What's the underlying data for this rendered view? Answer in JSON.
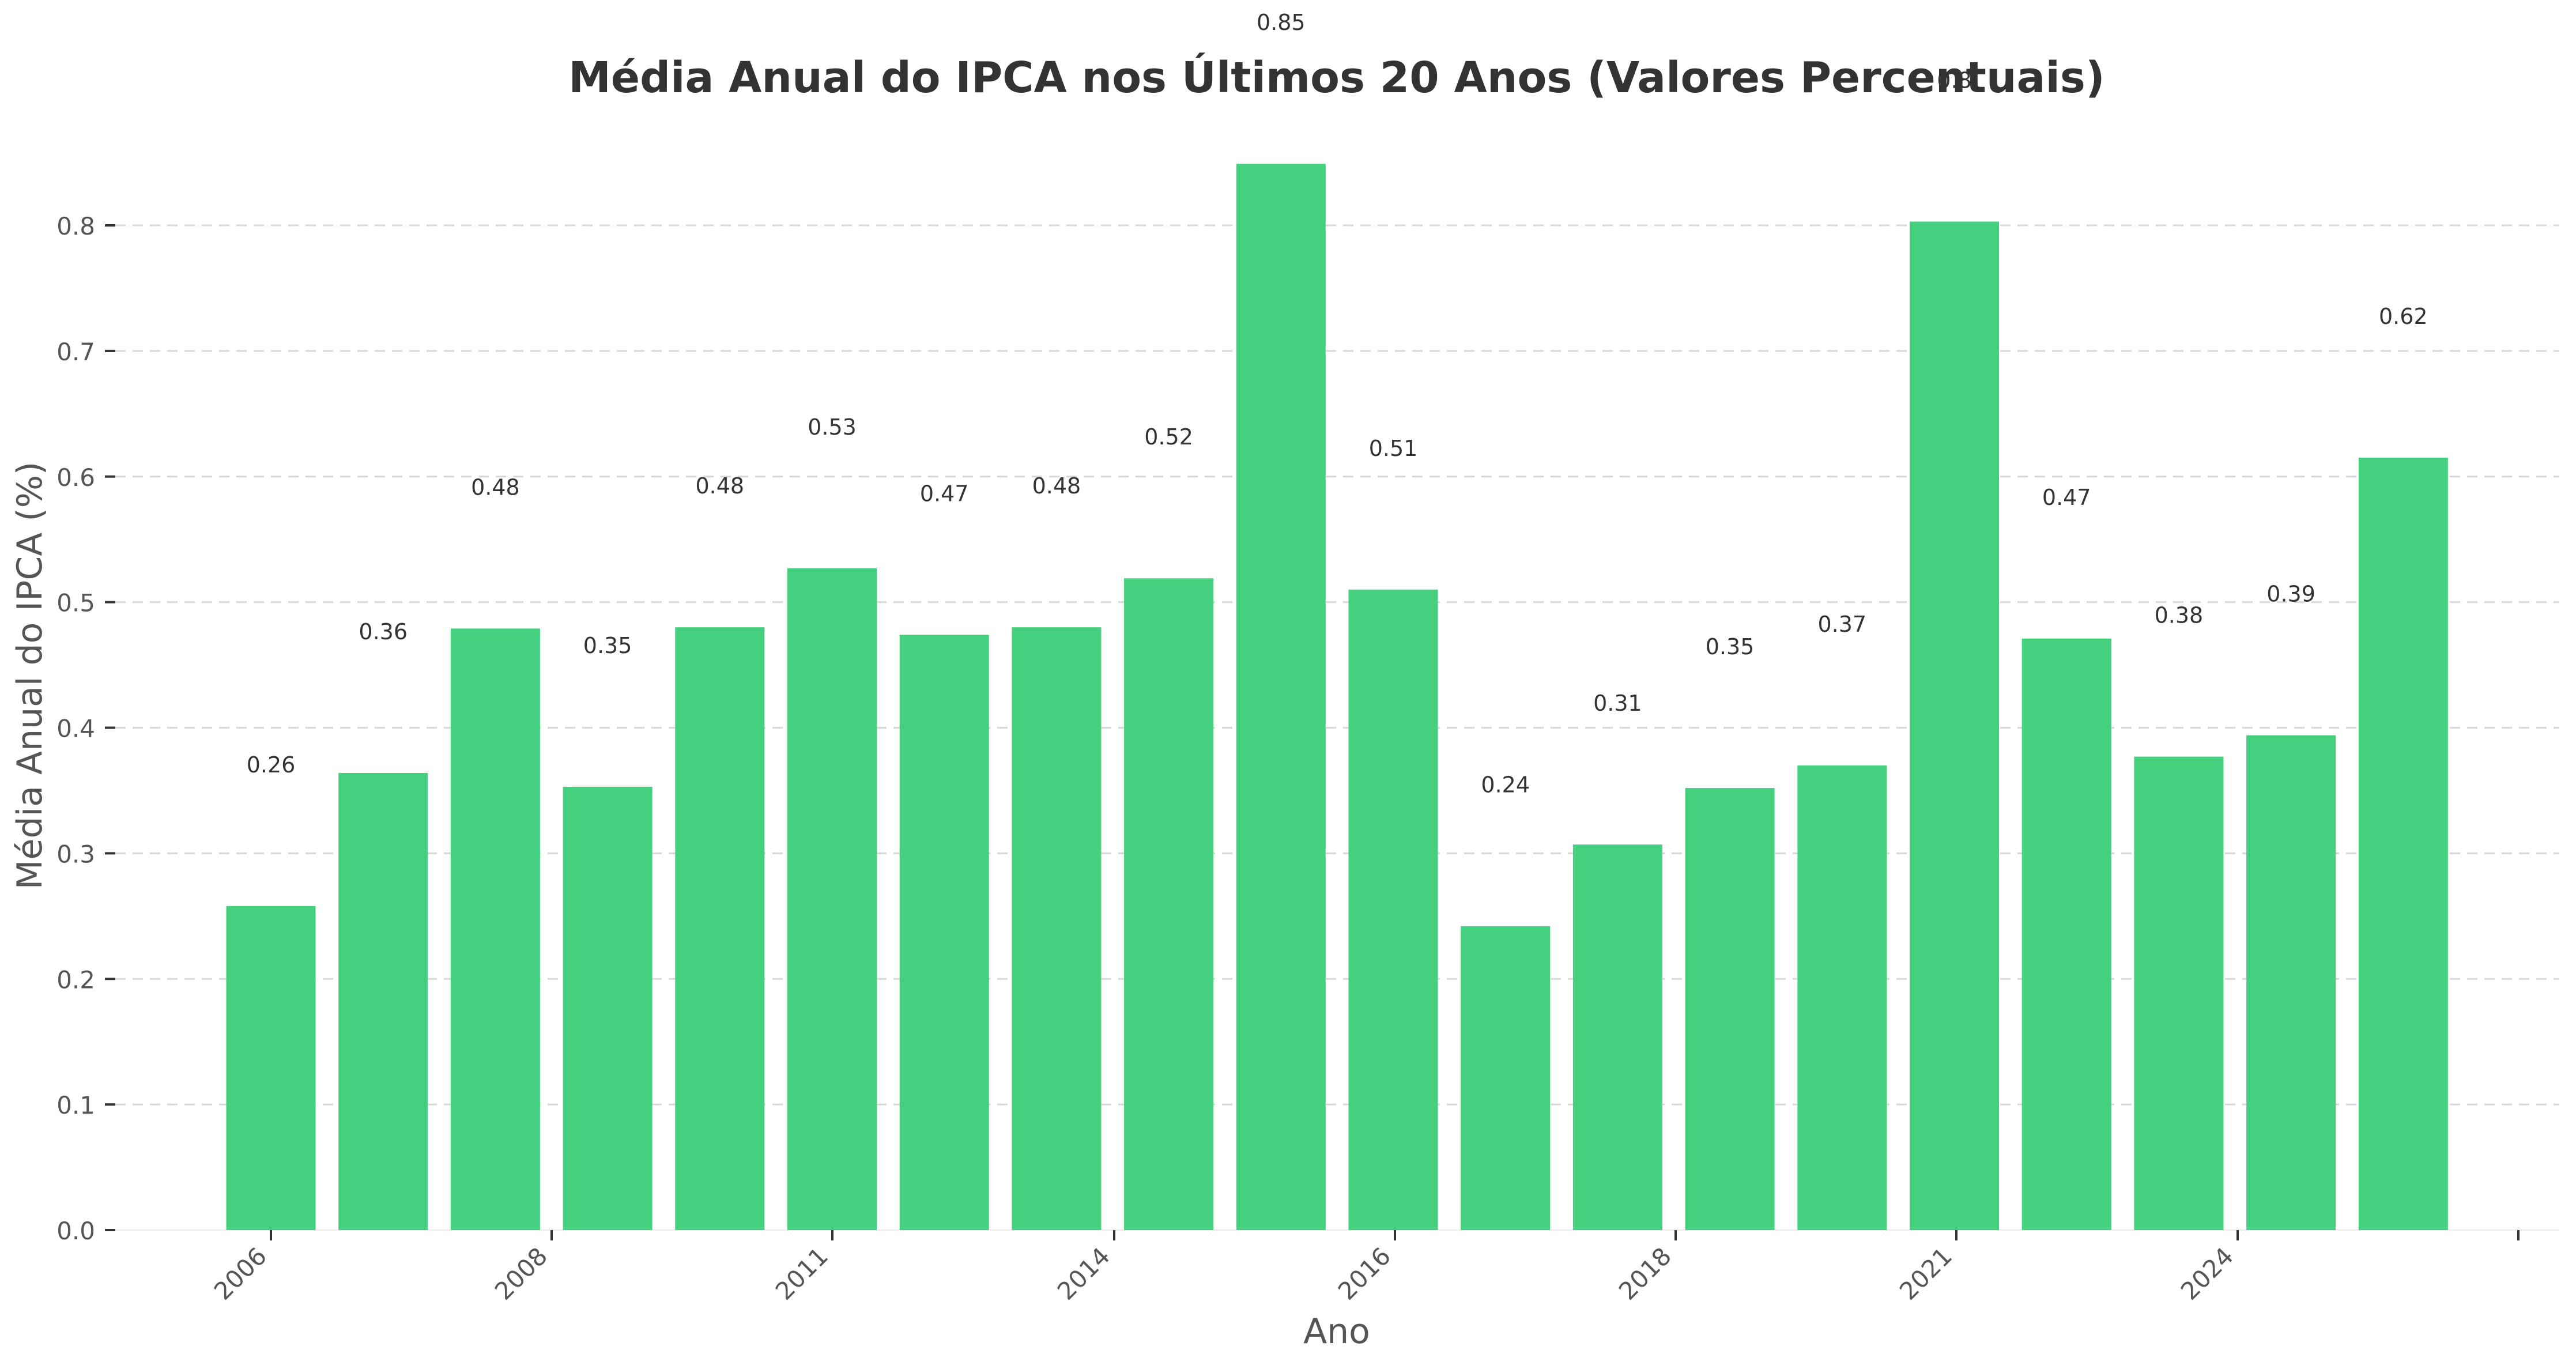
{
  "chart_data": {
    "type": "bar",
    "title": "Média Anual do IPCA nos Últimos 20 Anos (Valores Percentuais)",
    "xlabel": "Ano",
    "ylabel": "Média Anual do IPCA (%)",
    "ylim": [
      0,
      0.85
    ],
    "yticks": [
      0.0,
      0.1,
      0.2,
      0.3,
      0.4,
      0.5,
      0.6,
      0.7,
      0.8
    ],
    "ytick_labels": [
      "0.0",
      "0.1",
      "0.2",
      "0.3",
      "0.4",
      "0.5",
      "0.6",
      "0.7",
      "0.8"
    ],
    "grid": true,
    "bar_color": "#45D07F",
    "bars": [
      {
        "value": 0.258,
        "label": "0.26"
      },
      {
        "value": 0.364,
        "label": "0.36"
      },
      {
        "value": 0.479,
        "label": "0.48"
      },
      {
        "value": 0.353,
        "label": "0.35"
      },
      {
        "value": 0.48,
        "label": "0.48"
      },
      {
        "value": 0.527,
        "label": "0.53"
      },
      {
        "value": 0.474,
        "label": "0.47"
      },
      {
        "value": 0.48,
        "label": "0.48"
      },
      {
        "value": 0.519,
        "label": "0.52"
      },
      {
        "value": 0.849,
        "label": "0.85"
      },
      {
        "value": 0.51,
        "label": "0.51"
      },
      {
        "value": 0.242,
        "label": "0.24"
      },
      {
        "value": 0.307,
        "label": "0.31"
      },
      {
        "value": 0.352,
        "label": "0.35"
      },
      {
        "value": 0.37,
        "label": "0.37"
      },
      {
        "value": 0.803,
        "label": "0.8"
      },
      {
        "value": 0.471,
        "label": "0.47"
      },
      {
        "value": 0.377,
        "label": "0.38"
      },
      {
        "value": 0.394,
        "label": "0.39"
      },
      {
        "value": 0.615,
        "label": "0.62"
      }
    ],
    "xtick_labels": [
      "2006",
      "2008",
      "2011",
      "2014",
      "2016",
      "2018",
      "2021",
      "2024",
      ""
    ]
  }
}
